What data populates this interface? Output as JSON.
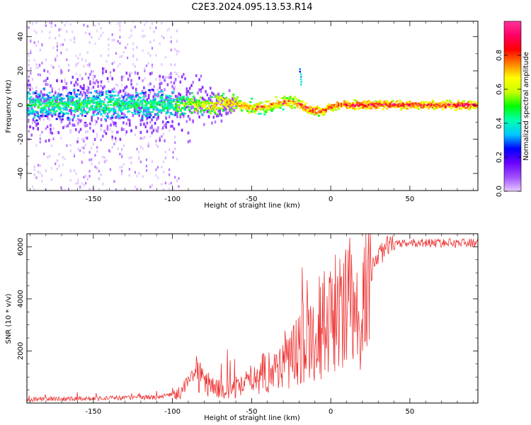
{
  "figure": {
    "title": "C2E3.2024.095.13.53.R14"
  },
  "chart_data": [
    {
      "type": "heatmap",
      "xlabel": "Height of straight line (km)",
      "ylabel": "Frequency (Hz)",
      "xlim": [
        -192,
        93
      ],
      "ylim": [
        -50,
        49
      ],
      "xticks": [
        -150,
        -100,
        -50,
        0,
        50
      ],
      "xtick_labels": [
        "-150",
        "-100",
        "-50",
        "0",
        "50"
      ],
      "yticks": [
        -40,
        -20,
        0,
        20,
        40
      ],
      "ytick_labels": [
        "-40",
        "-20",
        "0",
        "20",
        "40"
      ],
      "colorbar": {
        "label": "Normalized spectral amplitude",
        "range": [
          0,
          1
        ],
        "ticks": [
          0.0,
          0.2,
          0.4,
          0.6,
          0.8
        ],
        "tick_labels": [
          "0.0",
          "0.2",
          "0.4",
          "0.6",
          "0.8"
        ],
        "colormap": [
          "#e6c8ff",
          "#a050ff",
          "#6a00ff",
          "#0000ff",
          "#00c8ff",
          "#00ffb0",
          "#00ff00",
          "#c8ff00",
          "#ffff00",
          "#ff8000",
          "#ff0000",
          "#ff0066",
          "#ff3399"
        ]
      },
      "description": "Signal concentrated near 0 Hz; broad noise for heights below -100 km, narrowing toward a coherent line above -50 km with a short spike near 20 Hz at about -20 km"
    },
    {
      "type": "line",
      "xlabel": "Height of straight line (km)",
      "ylabel": "SNR (10 * v/v)",
      "xlim": [
        -192,
        93
      ],
      "ylim": [
        0,
        6500
      ],
      "xticks": [
        -150,
        -100,
        -50,
        0,
        50
      ],
      "xtick_labels": [
        "-150",
        "-100",
        "-50",
        "0",
        "50"
      ],
      "yticks": [
        2000,
        4000,
        6000
      ],
      "ytick_labels": [
        "2000",
        "4000",
        "6000"
      ],
      "series": [
        {
          "name": "SNR",
          "color": "#ee3333",
          "x": [
            -192,
            -150,
            -110,
            -100,
            -95,
            -90,
            -85,
            -80,
            -75,
            -70,
            -65,
            -60,
            -55,
            -50,
            -45,
            -40,
            -35,
            -30,
            -25,
            -20,
            -15,
            -10,
            -5,
            0,
            5,
            10,
            15,
            20,
            25,
            30,
            35,
            40,
            45,
            50,
            60,
            70,
            80,
            93
          ],
          "y": [
            150,
            180,
            220,
            350,
            380,
            900,
            1200,
            900,
            700,
            550,
            500,
            550,
            700,
            1000,
            1200,
            1300,
            1400,
            1600,
            1900,
            2300,
            2800,
            2900,
            3200,
            3400,
            3900,
            3800,
            3600,
            3900,
            5000,
            5700,
            5950,
            6050,
            6100,
            6150,
            6150,
            6150,
            6150,
            6150
          ]
        }
      ]
    }
  ]
}
